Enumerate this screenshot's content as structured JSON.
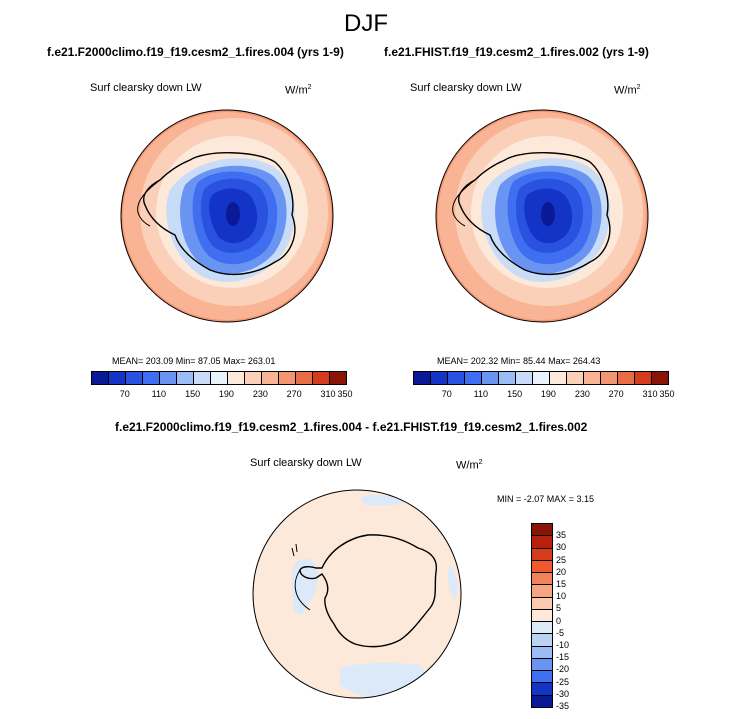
{
  "title": "DJF",
  "panels": [
    {
      "case": "f.e21.F2000climo.f19_f19.cesm2_1.fires.004 (yrs 1-9)",
      "variable": "Surf clearsky down LW",
      "units": "W/m",
      "units_sup": "2",
      "stats": "MEAN= 203.09  Min=  87.05  Max= 263.01",
      "colorbar_ticks": [
        "70",
        "110",
        "150",
        "190",
        "230",
        "270",
        "310",
        "350"
      ]
    },
    {
      "case": "f.e21.FHIST.f19_f19.cesm2_1.fires.002 (yrs 1-9)",
      "variable": "Surf clearsky down LW",
      "units": "W/m",
      "units_sup": "2",
      "stats": "MEAN= 202.32  Min=  85.44  Max= 264.43",
      "colorbar_ticks": [
        "70",
        "110",
        "150",
        "190",
        "230",
        "270",
        "310",
        "350"
      ]
    }
  ],
  "diff": {
    "title": "f.e21.F2000climo.f19_f19.cesm2_1.fires.004 - f.e21.FHIST.f19_f19.cesm2_1.fires.002",
    "variable": "Surf clearsky down LW",
    "units": "W/m",
    "units_sup": "2",
    "stats": "MIN =  -2.07 MAX =   3.15",
    "colorbar_ticks": [
      "35",
      "30",
      "25",
      "20",
      "15",
      "10",
      "5",
      "0",
      "-5",
      "-10",
      "-15",
      "-20",
      "-25",
      "-30",
      "-35"
    ]
  },
  "colors": {
    "abs_scale": [
      "#0a1a96",
      "#1434c8",
      "#2a52e0",
      "#3f6ef0",
      "#6a94f2",
      "#9bbcf5",
      "#c8dcf8",
      "#eaf2fb",
      "#fde9d9",
      "#fbd0b8",
      "#f8b495",
      "#f39570",
      "#ea6c45",
      "#d43c1c",
      "#8a1408"
    ],
    "diff_scale": [
      "#8a1408",
      "#b8200c",
      "#d43c1c",
      "#ee5a2c",
      "#f28258",
      "#f6a582",
      "#fbcaae",
      "#fde9d9",
      "#dce9f8",
      "#bcd2f3",
      "#9bbcf5",
      "#6a94f2",
      "#3f6ef0",
      "#1434c8",
      "#0a1a96"
    ]
  }
}
